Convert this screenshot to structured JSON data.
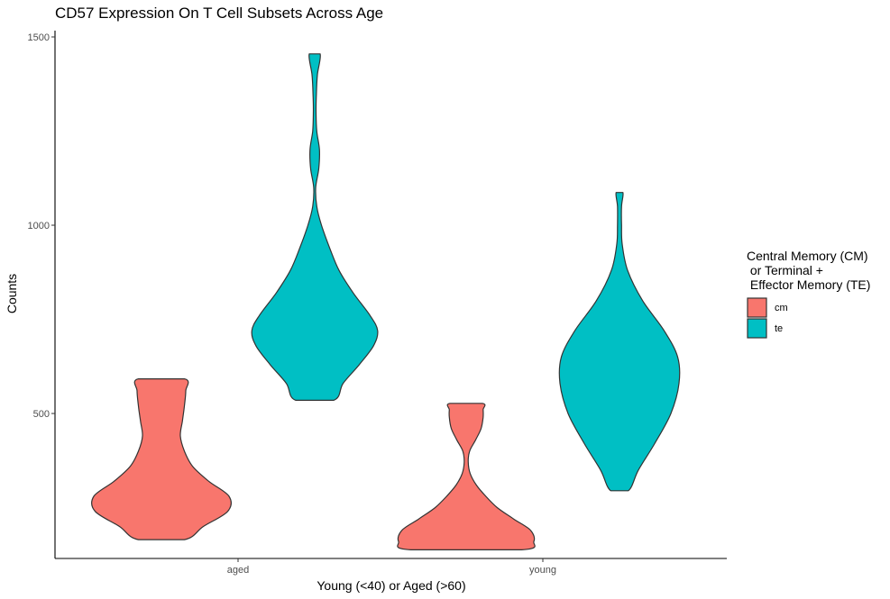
{
  "chart_data": {
    "type": "violin",
    "title": "CD57 Expression On T Cell Subsets Across Age",
    "xlabel": "Young (<40) or Aged (>60)",
    "ylabel": "Counts",
    "categories": [
      "aged",
      "young"
    ],
    "ylim": [
      115,
      1500
    ],
    "yticks": [
      500,
      1000,
      1500
    ],
    "grid": false,
    "legend": {
      "title": [
        "Central Memory (CM)",
        " or Terminal +",
        " Effector Memory (TE)"
      ],
      "position": "right",
      "entries": [
        {
          "label": "cm",
          "color": "#F8766D"
        },
        {
          "label": "te",
          "color": "#00BFC4"
        }
      ]
    },
    "series": [
      {
        "name": "cm",
        "color": "#F8766D",
        "violins": [
          {
            "category": "aged",
            "min": 165,
            "max": 592,
            "profile": [
              [
                165,
                0.34
              ],
              [
                200,
                0.62
              ],
              [
                240,
                0.98
              ],
              [
                280,
                1.0
              ],
              [
                320,
                0.7
              ],
              [
                360,
                0.46
              ],
              [
                400,
                0.34
              ],
              [
                440,
                0.28
              ],
              [
                480,
                0.31
              ],
              [
                520,
                0.34
              ],
              [
                560,
                0.36
              ],
              [
                592,
                0.34
              ]
            ]
          },
          {
            "category": "young",
            "min": 138,
            "max": 527,
            "profile": [
              [
                138,
                0.82
              ],
              [
                160,
                1.0
              ],
              [
                190,
                0.95
              ],
              [
                220,
                0.7
              ],
              [
                250,
                0.46
              ],
              [
                280,
                0.29
              ],
              [
                310,
                0.15
              ],
              [
                340,
                0.06
              ],
              [
                370,
                0.03
              ],
              [
                400,
                0.05
              ],
              [
                430,
                0.14
              ],
              [
                460,
                0.22
              ],
              [
                490,
                0.25
              ],
              [
                510,
                0.25
              ],
              [
                527,
                0.24
              ]
            ]
          }
        ]
      },
      {
        "name": "te",
        "color": "#00BFC4",
        "violins": [
          {
            "category": "aged",
            "min": 535,
            "max": 1455,
            "profile": [
              [
                535,
                0.28
              ],
              [
                580,
                0.42
              ],
              [
                630,
                0.66
              ],
              [
                680,
                0.87
              ],
              [
                720,
                0.93
              ],
              [
                760,
                0.82
              ],
              [
                820,
                0.57
              ],
              [
                880,
                0.36
              ],
              [
                940,
                0.22
              ],
              [
                1000,
                0.1
              ],
              [
                1050,
                0.03
              ],
              [
                1100,
                0.015
              ],
              [
                1150,
                0.06
              ],
              [
                1200,
                0.07
              ],
              [
                1250,
                0.03
              ],
              [
                1300,
                0.02
              ],
              [
                1350,
                0.025
              ],
              [
                1400,
                0.04
              ],
              [
                1455,
                0.08
              ]
            ]
          },
          {
            "category": "young",
            "min": 295,
            "max": 1087,
            "profile": [
              [
                295,
                0.13
              ],
              [
                350,
                0.28
              ],
              [
                420,
                0.52
              ],
              [
                500,
                0.76
              ],
              [
                580,
                0.88
              ],
              [
                650,
                0.86
              ],
              [
                720,
                0.66
              ],
              [
                800,
                0.34
              ],
              [
                880,
                0.12
              ],
              [
                950,
                0.04
              ],
              [
                1000,
                0.03
              ],
              [
                1050,
                0.03
              ],
              [
                1087,
                0.05
              ]
            ]
          }
        ]
      }
    ]
  }
}
